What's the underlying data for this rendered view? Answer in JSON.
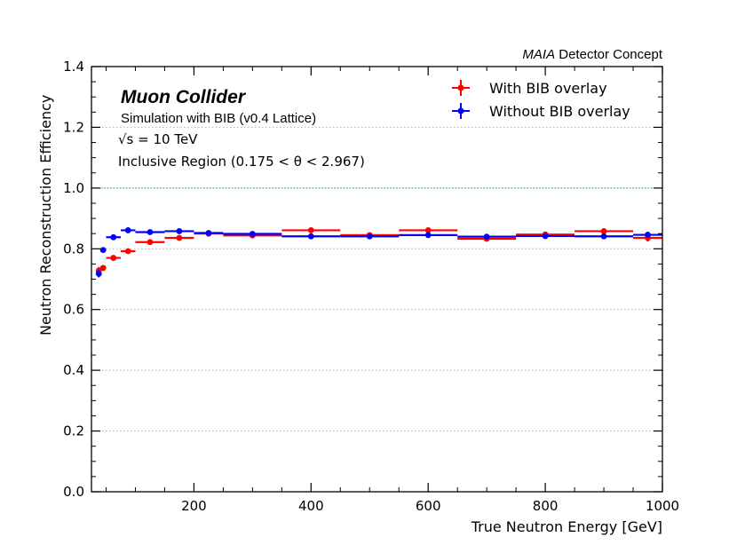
{
  "chart_data": {
    "type": "scatter",
    "title": "",
    "header_right": {
      "italic": "MAIA",
      "rest": " Detector Concept"
    },
    "labels": {
      "experiment": "Muon Collider",
      "simulation": "Simulation with BIB (v0.4 Lattice)",
      "energy": "√s = 10 TeV",
      "region": "Inclusive Region (0.175 < θ < 2.967)"
    },
    "xlabel": "True Neutron Energy [GeV]",
    "ylabel": "Neutron Reconstruction Efficiency",
    "xlim": [
      25,
      1000
    ],
    "ylim": [
      0,
      1.4
    ],
    "xticks": [
      200,
      400,
      600,
      800,
      1000
    ],
    "yticks": [
      0.0,
      0.2,
      0.4,
      0.6,
      0.8,
      1.0,
      1.2,
      1.4
    ],
    "ytick_labels": [
      "0.0",
      "0.2",
      "0.4",
      "0.6",
      "0.8",
      "1.0",
      "1.2",
      "1.4"
    ],
    "reference_line": 1.0,
    "grid": "horizontal dotted",
    "legend_position": "top-right",
    "series": [
      {
        "name": "With BIB overlay",
        "color": "#ff0000",
        "points": [
          {
            "x": 37.5,
            "y": 0.728,
            "xlo": 35,
            "xhi": 40,
            "yerr": 0.012
          },
          {
            "x": 45,
            "y": 0.737,
            "xlo": 40,
            "xhi": 50,
            "yerr": 0.008
          },
          {
            "x": 62.5,
            "y": 0.77,
            "xlo": 50,
            "xhi": 75,
            "yerr": 0.008
          },
          {
            "x": 87.5,
            "y": 0.792,
            "xlo": 75,
            "xhi": 100,
            "yerr": 0.008
          },
          {
            "x": 125,
            "y": 0.822,
            "xlo": 100,
            "xhi": 150,
            "yerr": 0.006
          },
          {
            "x": 175,
            "y": 0.836,
            "xlo": 150,
            "xhi": 200,
            "yerr": 0.005
          },
          {
            "x": 225,
            "y": 0.85,
            "xlo": 200,
            "xhi": 250,
            "yerr": 0.005
          },
          {
            "x": 300,
            "y": 0.844,
            "xlo": 250,
            "xhi": 350,
            "yerr": 0.004
          },
          {
            "x": 400,
            "y": 0.861,
            "xlo": 350,
            "xhi": 450,
            "yerr": 0.004
          },
          {
            "x": 500,
            "y": 0.845,
            "xlo": 450,
            "xhi": 550,
            "yerr": 0.004
          },
          {
            "x": 600,
            "y": 0.861,
            "xlo": 550,
            "xhi": 650,
            "yerr": 0.004
          },
          {
            "x": 700,
            "y": 0.833,
            "xlo": 650,
            "xhi": 750,
            "yerr": 0.004
          },
          {
            "x": 800,
            "y": 0.847,
            "xlo": 750,
            "xhi": 850,
            "yerr": 0.004
          },
          {
            "x": 900,
            "y": 0.858,
            "xlo": 850,
            "xhi": 950,
            "yerr": 0.004
          },
          {
            "x": 975,
            "y": 0.836,
            "xlo": 950,
            "xhi": 1000,
            "yerr": 0.012
          }
        ]
      },
      {
        "name": "Without BIB overlay",
        "color": "#0000ff",
        "points": [
          {
            "x": 37.5,
            "y": 0.718,
            "xlo": 35,
            "xhi": 40,
            "yerr": 0.012
          },
          {
            "x": 45,
            "y": 0.796,
            "xlo": 40,
            "xhi": 50,
            "yerr": 0.006
          },
          {
            "x": 62.5,
            "y": 0.838,
            "xlo": 50,
            "xhi": 75,
            "yerr": 0.006
          },
          {
            "x": 87.5,
            "y": 0.861,
            "xlo": 75,
            "xhi": 100,
            "yerr": 0.005
          },
          {
            "x": 125,
            "y": 0.855,
            "xlo": 100,
            "xhi": 150,
            "yerr": 0.004
          },
          {
            "x": 175,
            "y": 0.858,
            "xlo": 150,
            "xhi": 200,
            "yerr": 0.004
          },
          {
            "x": 225,
            "y": 0.852,
            "xlo": 200,
            "xhi": 250,
            "yerr": 0.004
          },
          {
            "x": 300,
            "y": 0.849,
            "xlo": 250,
            "xhi": 350,
            "yerr": 0.003
          },
          {
            "x": 400,
            "y": 0.841,
            "xlo": 350,
            "xhi": 450,
            "yerr": 0.003
          },
          {
            "x": 500,
            "y": 0.841,
            "xlo": 450,
            "xhi": 550,
            "yerr": 0.003
          },
          {
            "x": 600,
            "y": 0.845,
            "xlo": 550,
            "xhi": 650,
            "yerr": 0.003
          },
          {
            "x": 700,
            "y": 0.84,
            "xlo": 650,
            "xhi": 750,
            "yerr": 0.003
          },
          {
            "x": 800,
            "y": 0.842,
            "xlo": 750,
            "xhi": 850,
            "yerr": 0.003
          },
          {
            "x": 900,
            "y": 0.841,
            "xlo": 850,
            "xhi": 950,
            "yerr": 0.003
          },
          {
            "x": 975,
            "y": 0.846,
            "xlo": 950,
            "xhi": 1000,
            "yerr": 0.01
          }
        ]
      }
    ]
  }
}
